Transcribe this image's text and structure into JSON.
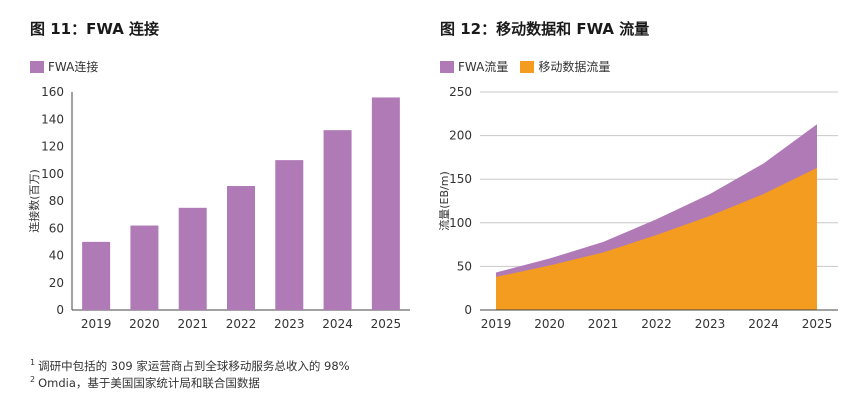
{
  "chart_data": [
    {
      "type": "bar",
      "title": "图 11：FWA 连接",
      "legend": "FWA连接",
      "ylabel": "连接数(百万)",
      "categories": [
        "2019",
        "2020",
        "2021",
        "2022",
        "2023",
        "2024",
        "2025"
      ],
      "series": [
        {
          "name": "FWA连接",
          "values": [
            50,
            62,
            75,
            91,
            110,
            132,
            156
          ]
        }
      ],
      "ylim": [
        0,
        160
      ],
      "yticks": [
        0,
        20,
        40,
        60,
        80,
        100,
        120,
        140,
        160
      ],
      "grid": false,
      "legend_position": "top-left",
      "color": "#b07ab7"
    },
    {
      "type": "area",
      "title": "图 12：移动数据和 FWA 流量",
      "ylabel": "流量(EB/m)",
      "categories": [
        "2019",
        "2020",
        "2021",
        "2022",
        "2023",
        "2024",
        "2025"
      ],
      "series": [
        {
          "name": "FWA流量",
          "values": [
            5,
            8,
            12,
            18,
            25,
            35,
            50
          ],
          "color": "#b07ab7"
        },
        {
          "name": "移动数据流量",
          "values": [
            38,
            51,
            66,
            86,
            108,
            133,
            163
          ],
          "color": "#f39c1f"
        }
      ],
      "stacked": true,
      "ylim": [
        0,
        250
      ],
      "yticks": [
        0,
        50,
        100,
        150,
        200,
        250
      ],
      "grid": true,
      "legend_position": "top-left"
    }
  ],
  "footnotes": [
    {
      "mark": "1",
      "text": "调研中包括的 309 家运营商占到全球移动服务总收入的 98%"
    },
    {
      "mark": "2",
      "text": "Omdia，基于美国国家统计局和联合国数据"
    }
  ]
}
